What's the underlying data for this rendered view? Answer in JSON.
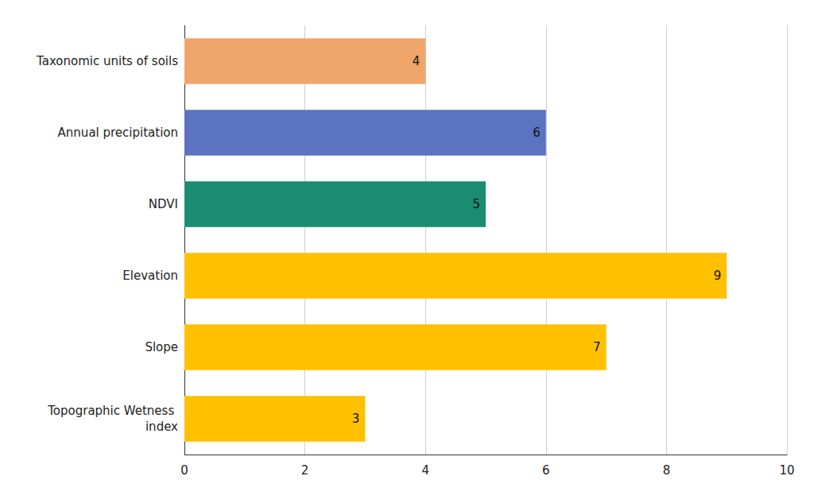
{
  "chart_data": {
    "type": "bar",
    "orientation": "horizontal",
    "categories": [
      "Taxonomic units of soils",
      "Annual precipitation",
      "NDVI",
      "Elevation",
      "Slope",
      "Topographic Wetness index"
    ],
    "values": [
      4,
      6,
      5,
      9,
      7,
      3
    ],
    "colors": [
      "#f0a66a",
      "#5b73c0",
      "#1a8c72",
      "#ffc000",
      "#ffc000",
      "#ffc000"
    ],
    "xlim": [
      0,
      10
    ],
    "xticks": [
      0,
      2,
      4,
      6,
      8,
      10
    ],
    "grid": true,
    "data_labels": true
  }
}
